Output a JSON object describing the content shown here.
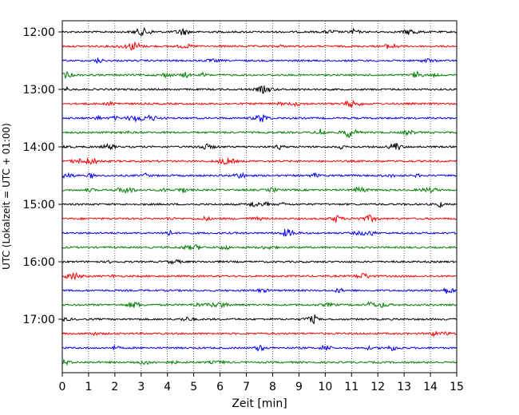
{
  "chart_data": {
    "type": "line",
    "title": "",
    "xlabel": "Zeit  [min]",
    "ylabel": "UTC (Lokalzeit = UTC + 01:00)",
    "xlim": [
      0,
      15
    ],
    "x_ticks": [
      0,
      1,
      2,
      3,
      4,
      5,
      6,
      7,
      8,
      9,
      10,
      11,
      12,
      13,
      14,
      15
    ],
    "x_tick_labels": [
      "0",
      "1",
      "2",
      "3",
      "4",
      "5",
      "6",
      "7",
      "8",
      "9",
      "10",
      "11",
      "12",
      "13",
      "14",
      "15"
    ],
    "y_ticks": [
      "12:00",
      "13:00",
      "14:00",
      "15:00",
      "16:00",
      "17:00"
    ],
    "grid": "vertical dotted at each minute",
    "trace_interval_minutes": 15,
    "trace_colors": [
      "#000000",
      "#ff0000",
      "#0000ff",
      "#008000"
    ],
    "traces": [
      {
        "start": "12:00",
        "color": "#000000"
      },
      {
        "start": "12:15",
        "color": "#ff0000"
      },
      {
        "start": "12:30",
        "color": "#0000ff"
      },
      {
        "start": "12:45",
        "color": "#008000"
      },
      {
        "start": "13:00",
        "color": "#000000"
      },
      {
        "start": "13:15",
        "color": "#ff0000"
      },
      {
        "start": "13:30",
        "color": "#0000ff"
      },
      {
        "start": "13:45",
        "color": "#008000"
      },
      {
        "start": "14:00",
        "color": "#000000"
      },
      {
        "start": "14:15",
        "color": "#ff0000"
      },
      {
        "start": "14:30",
        "color": "#0000ff"
      },
      {
        "start": "14:45",
        "color": "#008000"
      },
      {
        "start": "15:00",
        "color": "#000000"
      },
      {
        "start": "15:15",
        "color": "#ff0000"
      },
      {
        "start": "15:30",
        "color": "#0000ff"
      },
      {
        "start": "15:45",
        "color": "#008000"
      },
      {
        "start": "16:00",
        "color": "#000000"
      },
      {
        "start": "16:15",
        "color": "#ff0000"
      },
      {
        "start": "16:30",
        "color": "#0000ff"
      },
      {
        "start": "16:45",
        "color": "#008000"
      },
      {
        "start": "17:00",
        "color": "#000000"
      },
      {
        "start": "17:15",
        "color": "#ff0000"
      },
      {
        "start": "17:30",
        "color": "#0000ff"
      },
      {
        "start": "17:45",
        "color": "#008000"
      }
    ]
  }
}
